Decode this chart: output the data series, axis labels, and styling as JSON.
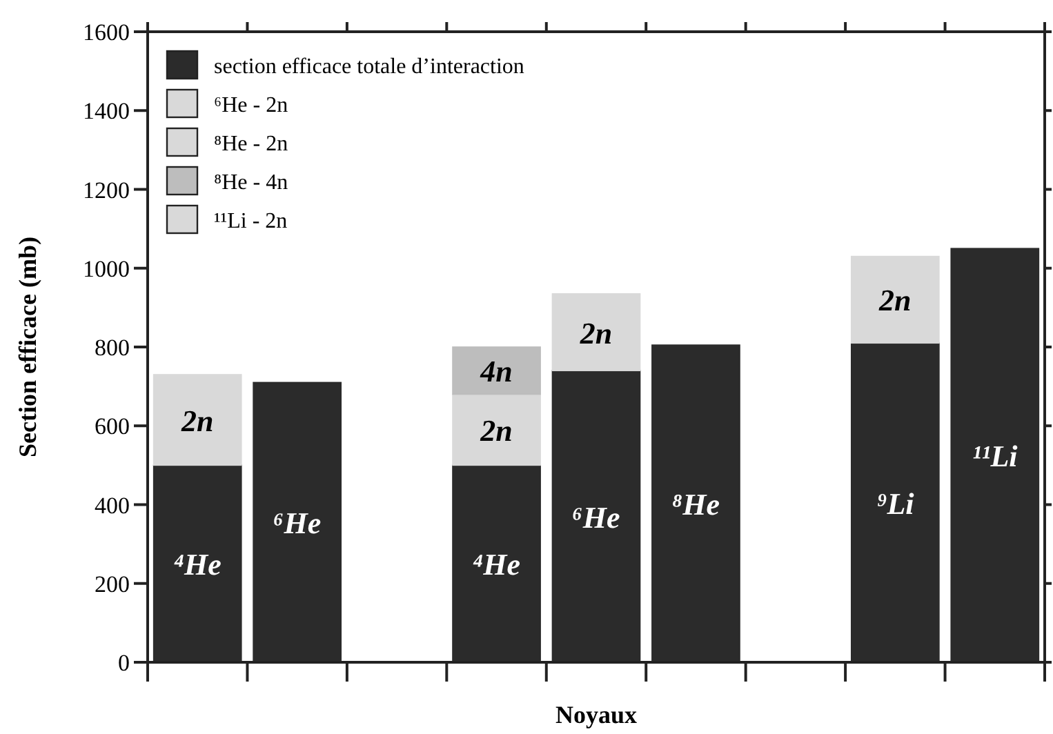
{
  "chart_data": {
    "type": "bar",
    "stacked": true,
    "xlabel": "Noyaux",
    "ylabel": "Section efficace (mb)",
    "categories": [
      "⁴He",
      "⁶He",
      null,
      "⁴He",
      "⁶He",
      "⁸He",
      null,
      "⁹Li",
      "¹¹Li"
    ],
    "series": [
      {
        "name": "section efficace totale d’interaction",
        "color": "#2b2b2b",
        "values": [
          500,
          710,
          null,
          500,
          740,
          805,
          null,
          810,
          1050
        ]
      },
      {
        "name": "⁶He - 2n",
        "color": "#d9d9d9",
        "values": [
          230,
          null,
          null,
          null,
          null,
          null,
          null,
          null,
          null
        ]
      },
      {
        "name": "⁸He - 2n",
        "color": "#d9d9d9",
        "values": [
          null,
          null,
          null,
          180,
          195,
          null,
          null,
          null,
          null
        ]
      },
      {
        "name": "⁸He - 4n",
        "color": "#bdbdbd",
        "values": [
          null,
          null,
          null,
          120,
          null,
          null,
          null,
          null,
          null
        ]
      },
      {
        "name": "¹¹Li - 2n",
        "color": "#d9d9d9",
        "values": [
          null,
          null,
          null,
          null,
          null,
          null,
          null,
          220,
          null
        ]
      }
    ],
    "annotations": [
      "2n",
      "2n",
      "2n",
      "4n",
      "2n"
    ],
    "ylim": [
      0,
      1600
    ],
    "yticks": [
      0,
      200,
      400,
      600,
      800,
      1000,
      1200,
      1400,
      1600
    ],
    "legend": "top left",
    "grid": false
  }
}
